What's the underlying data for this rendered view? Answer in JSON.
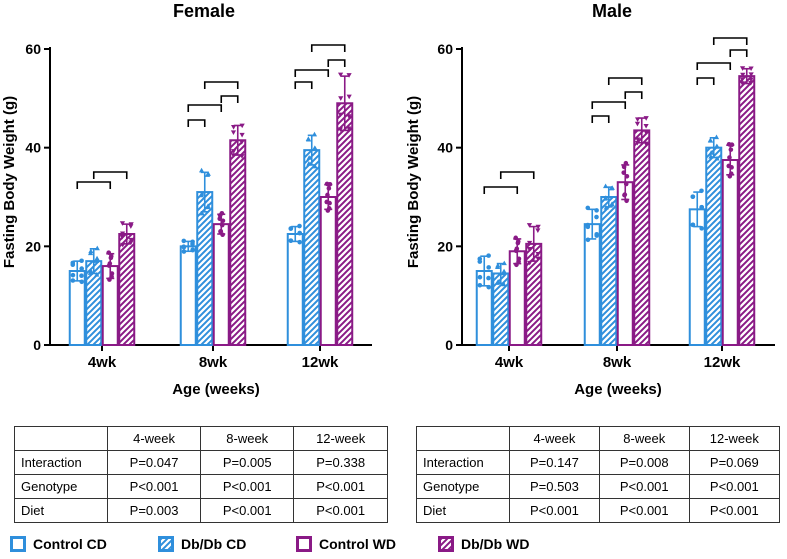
{
  "colors": {
    "blue": "#2f8fdc",
    "purple": "#8a1a86",
    "axis": "#000000"
  },
  "chart_data": [
    {
      "type": "bar",
      "title": "Female",
      "xlabel": "Age (weeks)",
      "ylabel": "Fasting Body Weight (g)",
      "ylim": [
        0,
        60
      ],
      "yticks": [
        "0",
        "20",
        "40",
        "60"
      ],
      "categories": [
        "4wk",
        "8wk",
        "12wk"
      ],
      "series": [
        {
          "name": "Control CD",
          "values": [
            15,
            20,
            22.5
          ],
          "errors": [
            2,
            1,
            1.5
          ]
        },
        {
          "name": "Db/Db CD",
          "values": [
            17,
            31,
            39.5
          ],
          "errors": [
            2.5,
            4,
            3
          ]
        },
        {
          "name": "Control WD",
          "values": [
            16,
            24.5,
            30
          ],
          "errors": [
            2.5,
            2,
            2.5
          ]
        },
        {
          "name": "Db/Db WD",
          "values": [
            22.5,
            41.5,
            49
          ],
          "errors": [
            2,
            3,
            5.5
          ]
        }
      ]
    },
    {
      "type": "bar",
      "title": "Male",
      "xlabel": "Age (weeks)",
      "ylabel": "Fasting Body Weight (g)",
      "ylim": [
        0,
        60
      ],
      "yticks": [
        "0",
        "20",
        "40",
        "60"
      ],
      "categories": [
        "4wk",
        "8wk",
        "12wk"
      ],
      "series": [
        {
          "name": "Control CD",
          "values": [
            15,
            24.5,
            27.5
          ],
          "errors": [
            3,
            3,
            3.5
          ]
        },
        {
          "name": "Db/Db CD",
          "values": [
            14.5,
            30,
            40
          ],
          "errors": [
            2,
            2,
            2
          ]
        },
        {
          "name": "Control WD",
          "values": [
            19,
            33,
            37.5
          ],
          "errors": [
            2.5,
            3.5,
            3
          ]
        },
        {
          "name": "Db/Db WD",
          "values": [
            20.5,
            43.5,
            54.5
          ],
          "errors": [
            3.5,
            2.5,
            1.5
          ]
        }
      ]
    }
  ],
  "tables": [
    {
      "headers": [
        "",
        "4-week",
        "8-week",
        "12-week"
      ],
      "rows": [
        [
          "Interaction",
          "P=0.047",
          "P=0.005",
          "P=0.338"
        ],
        [
          "Genotype",
          "P<0.001",
          "P<0.001",
          "P<0.001"
        ],
        [
          "Diet",
          "P=0.003",
          "P<0.001",
          "P<0.001"
        ]
      ]
    },
    {
      "headers": [
        "",
        "4-week",
        "8-week",
        "12-week"
      ],
      "rows": [
        [
          "Interaction",
          "P=0.147",
          "P=0.008",
          "P=0.069"
        ],
        [
          "Genotype",
          "P=0.503",
          "P<0.001",
          "P<0.001"
        ],
        [
          "Diet",
          "P<0.001",
          "P<0.001",
          "P<0.001"
        ]
      ]
    }
  ],
  "legend": [
    {
      "label": "Control CD",
      "color": "blue",
      "pattern": "open"
    },
    {
      "label": "Db/Db CD",
      "color": "blue",
      "pattern": "hatched"
    },
    {
      "label": "Control WD",
      "color": "purple",
      "pattern": "open"
    },
    {
      "label": "Db/Db WD",
      "color": "purple",
      "pattern": "hatched"
    }
  ]
}
